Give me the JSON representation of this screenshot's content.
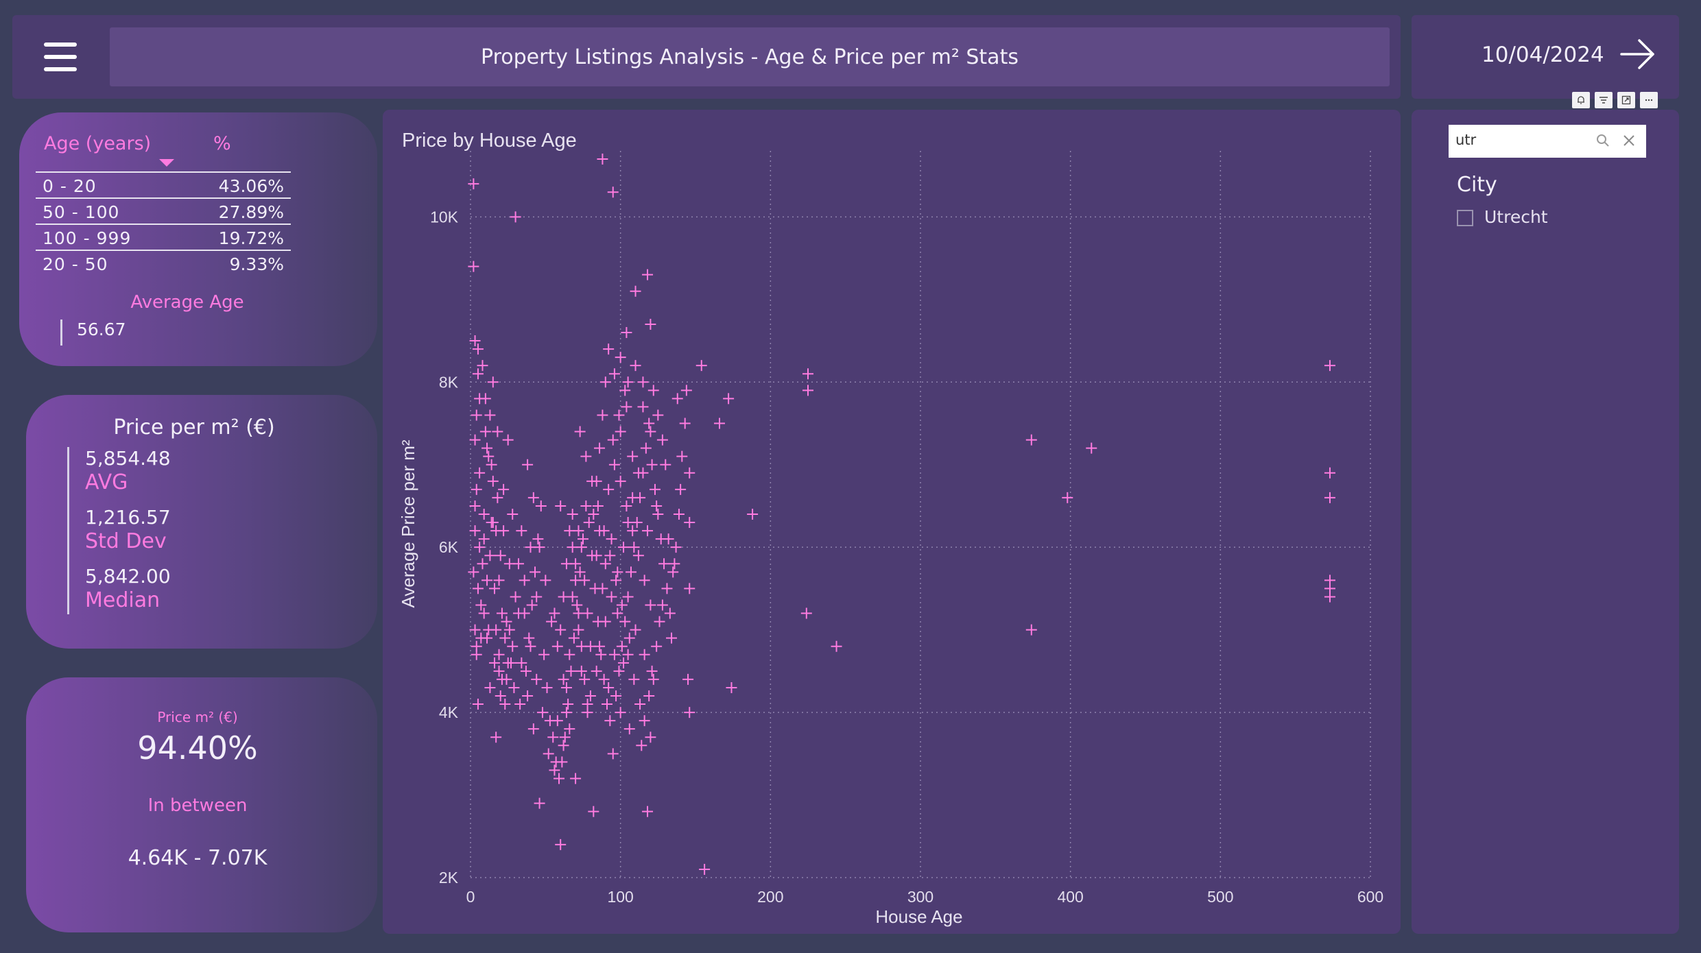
{
  "header": {
    "title": "Property Listings Analysis - Age & Price per m² Stats",
    "menu_icon": "hamburger-menu-icon"
  },
  "date_panel": {
    "date": "10/04/2024",
    "icon": "arrow-right-icon"
  },
  "visual_header_icons": [
    "bell-icon",
    "filter-icon",
    "focus-mode-icon",
    "more-options-icon"
  ],
  "age_table": {
    "headers": [
      "Age (years)",
      "%"
    ],
    "rows": [
      {
        "label": "0 - 20",
        "pct": "43.06%"
      },
      {
        "label": "50 - 100",
        "pct": "27.89%"
      },
      {
        "label": "100 - 999",
        "pct": "19.72%"
      },
      {
        "label": "20 - 50",
        "pct": "9.33%"
      }
    ],
    "avg_label": "Average Age",
    "avg_value": "56.67"
  },
  "price_card": {
    "title": "Price per m² (€)",
    "stats": [
      {
        "value": "5,854.48",
        "label": "AVG"
      },
      {
        "value": "1,216.57",
        "label": "Std Dev"
      },
      {
        "value": "5,842.00",
        "label": "Median"
      }
    ]
  },
  "between_card": {
    "caption": "Price m² (€)",
    "percent": "94.40%",
    "label": "In between",
    "range": "4.64K - 7.07K"
  },
  "slicer": {
    "search_value": "utr",
    "search_icon": "search-icon",
    "clear_icon": "close-icon",
    "title": "City",
    "options": [
      "Utrecht"
    ]
  },
  "colors": {
    "accent": "#ff7be0",
    "panel": "#4d3c72",
    "background": "#3b3f5c"
  },
  "chart_data": {
    "type": "scatter",
    "title": "Price by House Age",
    "xlabel": "House Age",
    "ylabel": "Average Price per m²",
    "xlim": [
      0,
      600
    ],
    "ylim": [
      2000,
      10800
    ],
    "xticks": [
      0,
      100,
      200,
      300,
      400,
      500,
      600
    ],
    "xtick_labels": [
      "0",
      "100",
      "200",
      "300",
      "400",
      "500",
      "600"
    ],
    "yticks": [
      2000,
      4000,
      6000,
      8000,
      10000
    ],
    "ytick_labels": [
      "2K",
      "4K",
      "6K",
      "8K",
      "10K"
    ],
    "grid": true,
    "marker": "plus",
    "color": "#ff7be0",
    "points": [
      [
        2,
        10400
      ],
      [
        2,
        9400
      ],
      [
        30,
        10000
      ],
      [
        88,
        10700
      ],
      [
        95,
        10300
      ],
      [
        5,
        8400
      ],
      [
        8,
        8200
      ],
      [
        15,
        8000
      ],
      [
        10,
        7800
      ],
      [
        4,
        7600
      ],
      [
        18,
        7400
      ],
      [
        25,
        7300
      ],
      [
        12,
        7100
      ],
      [
        6,
        6900
      ],
      [
        22,
        6700
      ],
      [
        3,
        6500
      ],
      [
        14,
        6300
      ],
      [
        9,
        6100
      ],
      [
        20,
        5900
      ],
      [
        2,
        5700
      ],
      [
        16,
        5500
      ],
      [
        7,
        5300
      ],
      [
        24,
        5100
      ],
      [
        11,
        4900
      ],
      [
        4,
        4700
      ],
      [
        19,
        4500
      ],
      [
        13,
        4300
      ],
      [
        5,
        4100
      ],
      [
        28,
        6400
      ],
      [
        32,
        5800
      ],
      [
        36,
        5200
      ],
      [
        40,
        4800
      ],
      [
        44,
        4400
      ],
      [
        48,
        4000
      ],
      [
        26,
        5000
      ],
      [
        34,
        4600
      ],
      [
        38,
        4200
      ],
      [
        42,
        3800
      ],
      [
        17,
        3700
      ],
      [
        52,
        3500
      ],
      [
        46,
        2900
      ],
      [
        60,
        2400
      ],
      [
        56,
        3300
      ],
      [
        62,
        3600
      ],
      [
        58,
        3900
      ],
      [
        64,
        4300
      ],
      [
        66,
        4700
      ],
      [
        54,
        5100
      ],
      [
        68,
        5400
      ],
      [
        70,
        5800
      ],
      [
        72,
        6200
      ],
      [
        60,
        6500
      ],
      [
        74,
        6000
      ],
      [
        76,
        5600
      ],
      [
        78,
        5200
      ],
      [
        80,
        4800
      ],
      [
        70,
        3200
      ],
      [
        66,
        3800
      ],
      [
        64,
        4000
      ],
      [
        82,
        6400
      ],
      [
        84,
        6800
      ],
      [
        86,
        7200
      ],
      [
        88,
        7600
      ],
      [
        90,
        8000
      ],
      [
        92,
        8400
      ],
      [
        96,
        8100
      ],
      [
        100,
        8300
      ],
      [
        104,
        8600
      ],
      [
        110,
        9100
      ],
      [
        118,
        9300
      ],
      [
        120,
        8700
      ],
      [
        115,
        8000
      ],
      [
        122,
        7900
      ],
      [
        125,
        7600
      ],
      [
        128,
        7300
      ],
      [
        130,
        7000
      ],
      [
        112,
        6900
      ],
      [
        108,
        6600
      ],
      [
        105,
        6300
      ],
      [
        102,
        6000
      ],
      [
        98,
        5700
      ],
      [
        94,
        5400
      ],
      [
        90,
        5100
      ],
      [
        86,
        4800
      ],
      [
        84,
        4500
      ],
      [
        80,
        4200
      ],
      [
        95,
        3500
      ],
      [
        100,
        4000
      ],
      [
        106,
        3800
      ],
      [
        114,
        3600
      ],
      [
        120,
        3700
      ],
      [
        82,
        2800
      ],
      [
        118,
        2800
      ],
      [
        145,
        4400
      ],
      [
        146,
        4000
      ],
      [
        146,
        5500
      ],
      [
        146,
        6300
      ],
      [
        146,
        6900
      ],
      [
        138,
        7800
      ],
      [
        144,
        7900
      ],
      [
        154,
        8200
      ],
      [
        166,
        7500
      ],
      [
        172,
        7800
      ],
      [
        174,
        4300
      ],
      [
        188,
        6400
      ],
      [
        225,
        8100
      ],
      [
        225,
        7900
      ],
      [
        224,
        5200
      ],
      [
        244,
        4800
      ],
      [
        156,
        2100
      ],
      [
        374,
        7300
      ],
      [
        414,
        7200
      ],
      [
        398,
        6600
      ],
      [
        374,
        5000
      ],
      [
        573,
        8200
      ],
      [
        573,
        6900
      ],
      [
        573,
        6600
      ],
      [
        573,
        5600
      ],
      [
        573,
        5500
      ],
      [
        573,
        5400
      ],
      [
        132,
        6100
      ],
      [
        136,
        5800
      ],
      [
        140,
        6700
      ],
      [
        118,
        6200
      ],
      [
        124,
        6500
      ],
      [
        110,
        5000
      ],
      [
        116,
        4700
      ],
      [
        122,
        4400
      ],
      [
        128,
        5300
      ],
      [
        134,
        4900
      ],
      [
        92,
        6700
      ],
      [
        96,
        7000
      ],
      [
        100,
        7400
      ],
      [
        104,
        7700
      ],
      [
        108,
        7100
      ],
      [
        90,
        5800
      ],
      [
        94,
        6100
      ],
      [
        98,
        5200
      ],
      [
        102,
        4600
      ],
      [
        106,
        4900
      ],
      [
        88,
        5500
      ],
      [
        86,
        6200
      ],
      [
        84,
        5900
      ],
      [
        92,
        4300
      ],
      [
        96,
        4700
      ],
      [
        68,
        6400
      ],
      [
        72,
        5000
      ],
      [
        74,
        4500
      ],
      [
        78,
        4100
      ],
      [
        62,
        4400
      ],
      [
        58,
        4800
      ],
      [
        56,
        5200
      ],
      [
        50,
        5600
      ],
      [
        46,
        6000
      ],
      [
        42,
        6600
      ],
      [
        38,
        7000
      ],
      [
        34,
        6200
      ],
      [
        30,
        5400
      ],
      [
        26,
        5800
      ],
      [
        22,
        6200
      ],
      [
        18,
        6600
      ],
      [
        14,
        7000
      ],
      [
        10,
        7400
      ],
      [
        6,
        7800
      ],
      [
        8,
        5800
      ],
      [
        12,
        5000
      ],
      [
        16,
        4600
      ],
      [
        20,
        4200
      ],
      [
        24,
        4400
      ],
      [
        28,
        4800
      ],
      [
        32,
        5200
      ],
      [
        36,
        5600
      ],
      [
        40,
        6000
      ],
      [
        44,
        5400
      ],
      [
        3,
        8500
      ],
      [
        5,
        8100
      ],
      [
        3,
        7300
      ],
      [
        4,
        6700
      ],
      [
        3,
        6200
      ],
      [
        5,
        5500
      ],
      [
        3,
        5000
      ],
      [
        4,
        4800
      ],
      [
        6,
        6000
      ],
      [
        9,
        6400
      ],
      [
        11,
        7200
      ],
      [
        13,
        7600
      ],
      [
        15,
        6800
      ],
      [
        17,
        6200
      ],
      [
        19,
        5600
      ],
      [
        21,
        5200
      ],
      [
        23,
        4900
      ],
      [
        27,
        4600
      ],
      [
        29,
        4300
      ],
      [
        33,
        4100
      ],
      [
        37,
        4500
      ],
      [
        39,
        4900
      ],
      [
        41,
        5300
      ],
      [
        43,
        5700
      ],
      [
        45,
        6100
      ],
      [
        47,
        6500
      ],
      [
        49,
        4700
      ],
      [
        51,
        4300
      ],
      [
        53,
        3900
      ],
      [
        55,
        3700
      ],
      [
        57,
        3400
      ],
      [
        59,
        3200
      ],
      [
        61,
        3400
      ],
      [
        63,
        3700
      ],
      [
        65,
        4100
      ],
      [
        67,
        4500
      ],
      [
        69,
        4900
      ],
      [
        71,
        5300
      ],
      [
        73,
        5700
      ],
      [
        75,
        6100
      ],
      [
        77,
        6500
      ],
      [
        79,
        6300
      ],
      [
        81,
        5900
      ],
      [
        83,
        5500
      ],
      [
        85,
        5100
      ],
      [
        87,
        4700
      ],
      [
        89,
        4400
      ],
      [
        91,
        4100
      ],
      [
        93,
        3900
      ],
      [
        97,
        4200
      ],
      [
        99,
        4500
      ],
      [
        101,
        4800
      ],
      [
        103,
        5100
      ],
      [
        105,
        5400
      ],
      [
        107,
        5700
      ],
      [
        109,
        6000
      ],
      [
        111,
        6300
      ],
      [
        113,
        6600
      ],
      [
        115,
        6900
      ],
      [
        117,
        7200
      ],
      [
        119,
        7500
      ],
      [
        121,
        7000
      ],
      [
        123,
        6700
      ],
      [
        125,
        6400
      ],
      [
        127,
        6100
      ],
      [
        129,
        5800
      ],
      [
        131,
        5500
      ],
      [
        133,
        5200
      ],
      [
        135,
        5700
      ],
      [
        137,
        6000
      ],
      [
        139,
        6400
      ],
      [
        141,
        7100
      ],
      [
        143,
        7500
      ],
      [
        126,
        5100
      ],
      [
        124,
        4800
      ],
      [
        121,
        4500
      ],
      [
        119,
        4200
      ],
      [
        116,
        3900
      ],
      [
        113,
        4100
      ],
      [
        109,
        4400
      ],
      [
        105,
        4700
      ],
      [
        101,
        5300
      ],
      [
        97,
        5600
      ],
      [
        93,
        5900
      ],
      [
        89,
        6200
      ],
      [
        85,
        6500
      ],
      [
        81,
        6800
      ],
      [
        77,
        7100
      ],
      [
        73,
        7400
      ],
      [
        105,
        8000
      ],
      [
        110,
        8200
      ],
      [
        115,
        7700
      ],
      [
        120,
        7400
      ],
      [
        95,
        7300
      ],
      [
        99,
        7600
      ],
      [
        103,
        7900
      ],
      [
        100,
        6800
      ],
      [
        104,
        6500
      ],
      [
        108,
        6200
      ],
      [
        112,
        5900
      ],
      [
        116,
        5600
      ],
      [
        120,
        5300
      ],
      [
        60,
        5000
      ],
      [
        62,
        5400
      ],
      [
        64,
        5800
      ],
      [
        66,
        6200
      ],
      [
        68,
        6000
      ],
      [
        70,
        5600
      ],
      [
        72,
        5200
      ],
      [
        74,
        4800
      ],
      [
        76,
        4400
      ],
      [
        78,
        4000
      ],
      [
        7,
        4900
      ],
      [
        9,
        5200
      ],
      [
        11,
        5600
      ],
      [
        13,
        5900
      ],
      [
        15,
        6300
      ],
      [
        17,
        5000
      ],
      [
        19,
        4700
      ],
      [
        21,
        4400
      ],
      [
        23,
        4100
      ],
      [
        25,
        4600
      ]
    ]
  }
}
